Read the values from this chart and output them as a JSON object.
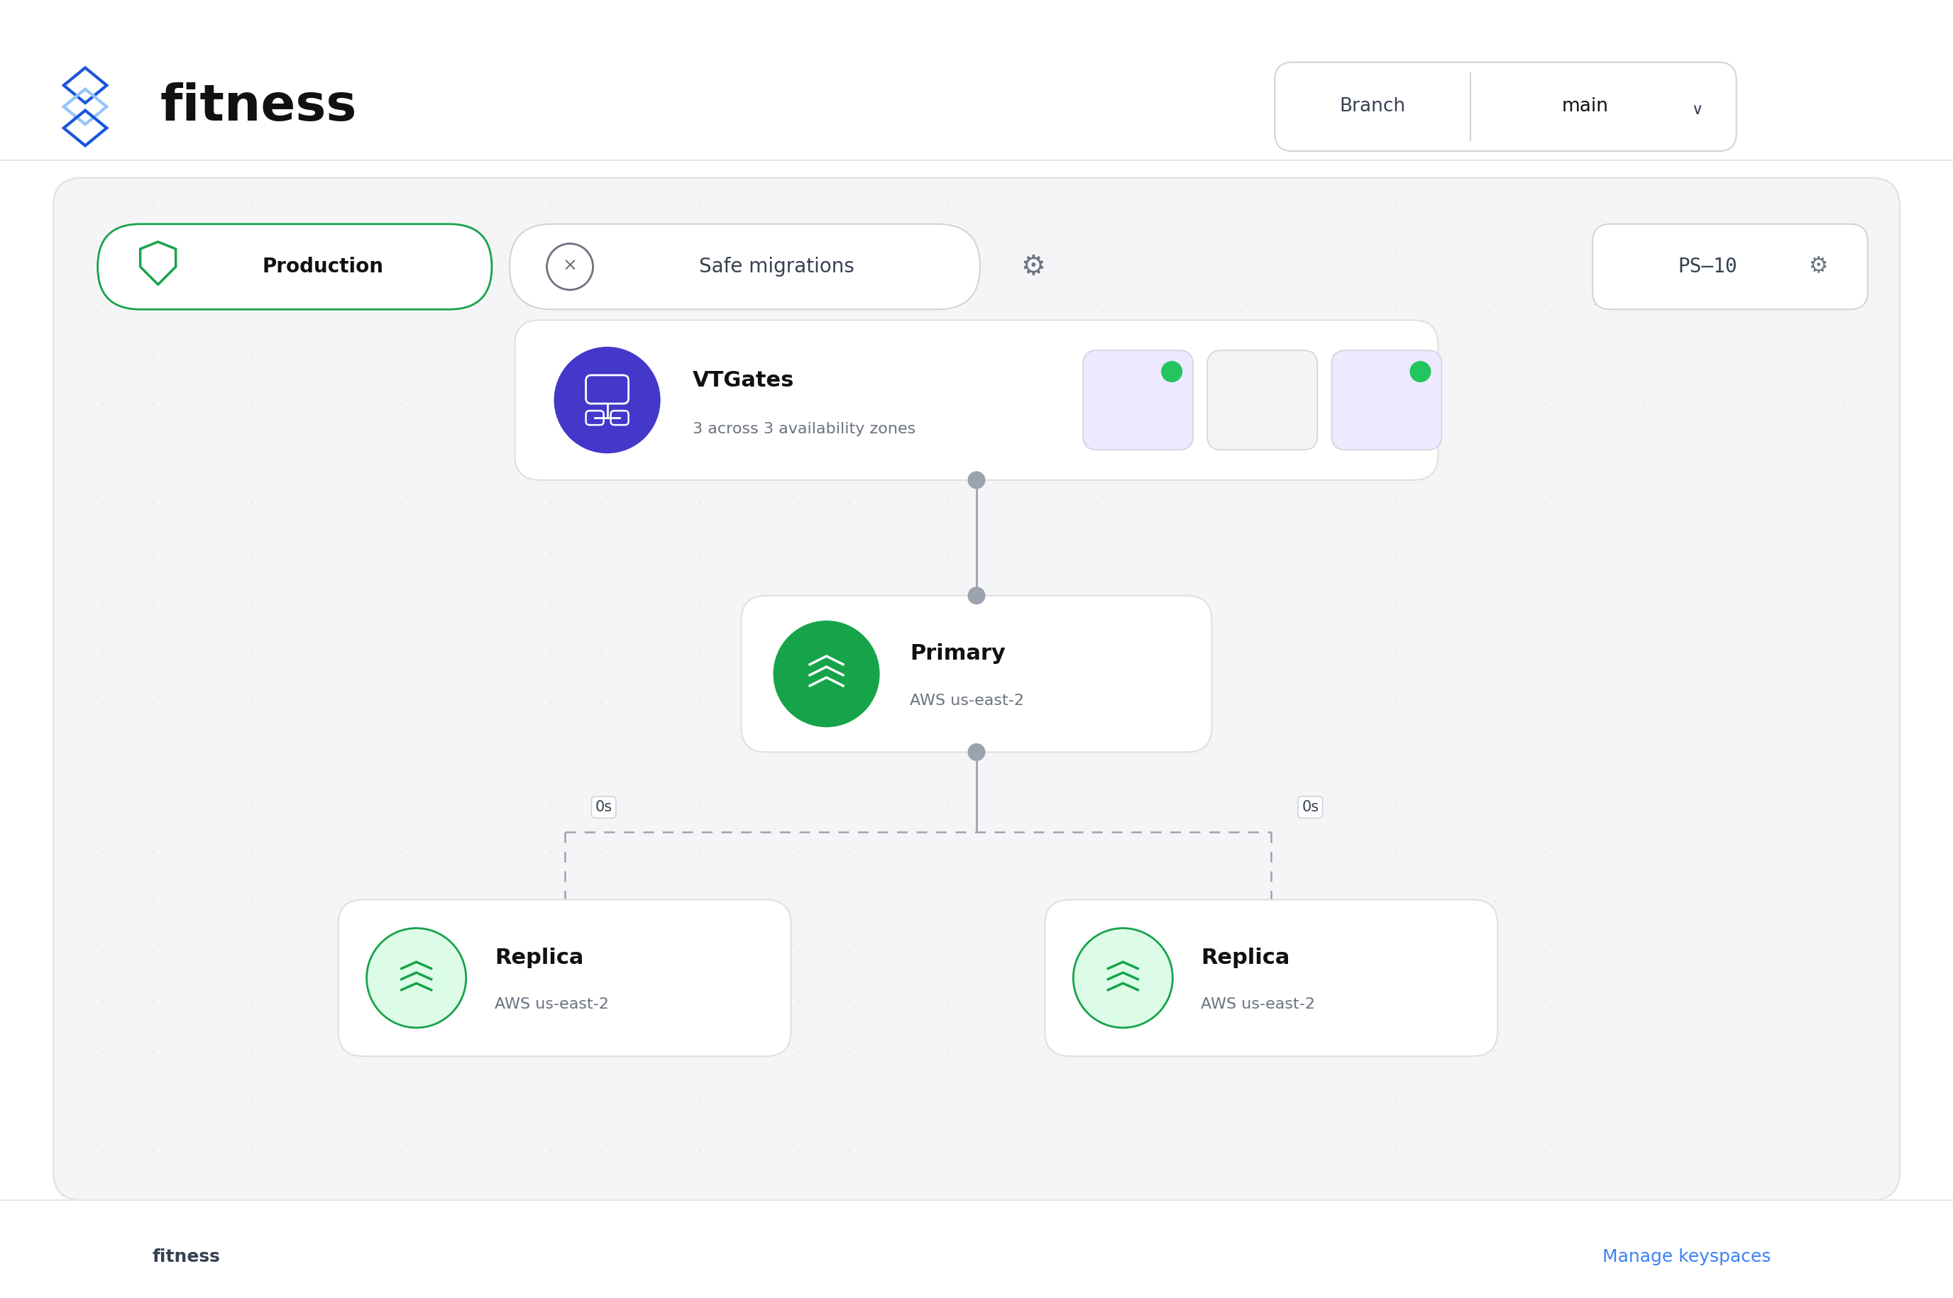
{
  "bg_color": "#ffffff",
  "panel_bg": "#f5f5f7",
  "panel_border": "#e0e0e0",
  "title_text": "fitness",
  "title_color": "#111111",
  "title_fontsize": 52,
  "branch_label": "Branch",
  "branch_value": "main",
  "production_label": "Production",
  "safe_migrations_label": "Safe migrations",
  "ps10_label": "PS–10",
  "vtgate_title": "VTGates",
  "vtgate_subtitle": "3 across 3 availability zones",
  "primary_title": "Primary",
  "primary_subtitle": "AWS us-east-2",
  "replica_title": "Replica",
  "replica_subtitle": "AWS us-east-2",
  "lag_label": "0s",
  "footer_left": "fitness",
  "footer_right": "Manage keyspaces",
  "footer_right_color": "#3b82f6",
  "node_bg": "#ffffff",
  "node_border": "#e0e0e0",
  "vtgate_icon_bg": "#4338ca",
  "primary_icon_bg": "#16a34a",
  "replica_icon_bg": "#dcfce7",
  "replica_icon_stroke": "#16a34a",
  "green_dot": "#22c55e",
  "line_color": "#9ca3af",
  "production_border": "#16a34a",
  "production_text": "#111111",
  "safe_text": "#374151",
  "gear_color": "#6b7280",
  "dot_color": "#c8ccd4",
  "pill_bg": "#ffffff",
  "header_sep_color": "#e5e7eb",
  "footer_sep_color": "#e5e7eb",
  "branch_border": "#d1d5db",
  "branch_sep_color": "#d1d5db",
  "vtcard_colors": [
    "#ede9fe",
    "#f3f4f6",
    "#ede9fe"
  ],
  "vtcard_dot_show": [
    true,
    false,
    true
  ]
}
